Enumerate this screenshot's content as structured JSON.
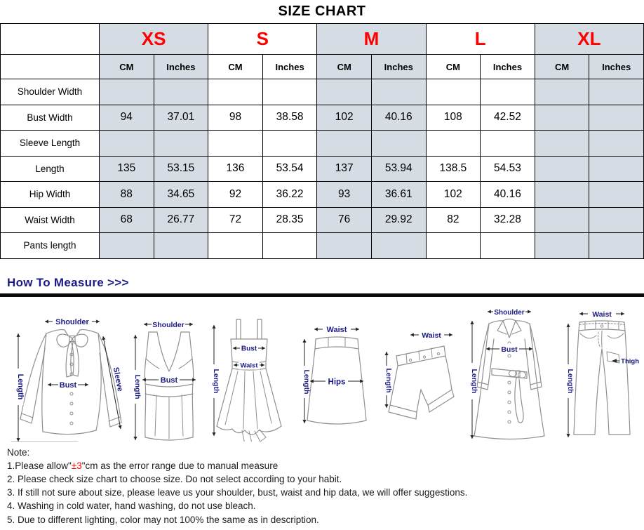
{
  "title": "SIZE CHART",
  "table": {
    "sizes": [
      {
        "label": "XS",
        "shaded": true
      },
      {
        "label": "S",
        "shaded": false
      },
      {
        "label": "M",
        "shaded": true
      },
      {
        "label": "L",
        "shaded": false
      },
      {
        "label": "XL",
        "shaded": true
      }
    ],
    "unit_headers": [
      "CM",
      "Inches"
    ],
    "rows": [
      {
        "label": "Shoulder Width",
        "values": [
          "",
          "",
          "",
          "",
          "",
          "",
          "",
          "",
          "",
          ""
        ]
      },
      {
        "label": "Bust Width",
        "values": [
          "94",
          "37.01",
          "98",
          "38.58",
          "102",
          "40.16",
          "108",
          "42.52",
          "",
          ""
        ]
      },
      {
        "label": "Sleeve Length",
        "values": [
          "",
          "",
          "",
          "",
          "",
          "",
          "",
          "",
          "",
          ""
        ]
      },
      {
        "label": "Length",
        "values": [
          "135",
          "53.15",
          "136",
          "53.54",
          "137",
          "53.94",
          "138.5",
          "54.53",
          "",
          ""
        ]
      },
      {
        "label": "Hip Width",
        "values": [
          "88",
          "34.65",
          "92",
          "36.22",
          "93",
          "36.61",
          "102",
          "40.16",
          "",
          ""
        ]
      },
      {
        "label": "Waist Width",
        "values": [
          "68",
          "26.77",
          "72",
          "28.35",
          "76",
          "29.92",
          "82",
          "32.28",
          "",
          ""
        ]
      },
      {
        "label": "Pants length",
        "values": [
          "",
          "",
          "",
          "",
          "",
          "",
          "",
          "",
          "",
          ""
        ]
      }
    ]
  },
  "measure_heading": "How To Measure >>>",
  "figures": {
    "blouse": {
      "shoulder": "Shoulder",
      "length": "Length",
      "bust": "Bust",
      "sleeve": "Sleeve"
    },
    "tank": {
      "shoulder": "Shoulder",
      "length": "Length",
      "bust": "Bust"
    },
    "dress": {
      "bust": "Bust",
      "waist": "Waist",
      "length": "Length"
    },
    "skirt": {
      "waist": "Waist",
      "hips": "Hips",
      "length": "Length"
    },
    "shorts": {
      "waist": "Waist",
      "length": "Length"
    },
    "coat": {
      "shoulder": "Shoulder",
      "bust": "Bust",
      "length": "Length"
    },
    "pants": {
      "waist": "Waist",
      "thigh": "Thigh",
      "length": "Length"
    }
  },
  "notes": {
    "heading": "Note:",
    "items": [
      [
        {
          "t": "1.Please allow\""
        },
        {
          "t": "±3",
          "red": true
        },
        {
          "t": "\"cm as the error range due to manual measure"
        }
      ],
      [
        {
          "t": "2. Please check size chart to choose size. Do not select according to your habit."
        }
      ],
      [
        {
          "t": "3. If still not sure about size, please leave us your shoulder, bust, waist and hip data, we will offer suggestions."
        }
      ],
      [
        {
          "t": "4. Washing in cold water, hand washing, do not use bleach."
        }
      ],
      [
        {
          "t": "5. Due to different lighting, color may not 100% the same as in description."
        }
      ]
    ]
  },
  "colors": {
    "accent_red": "#ff0000",
    "header_shade": "#d6dce4",
    "heading_navy": "#1b1b86"
  }
}
